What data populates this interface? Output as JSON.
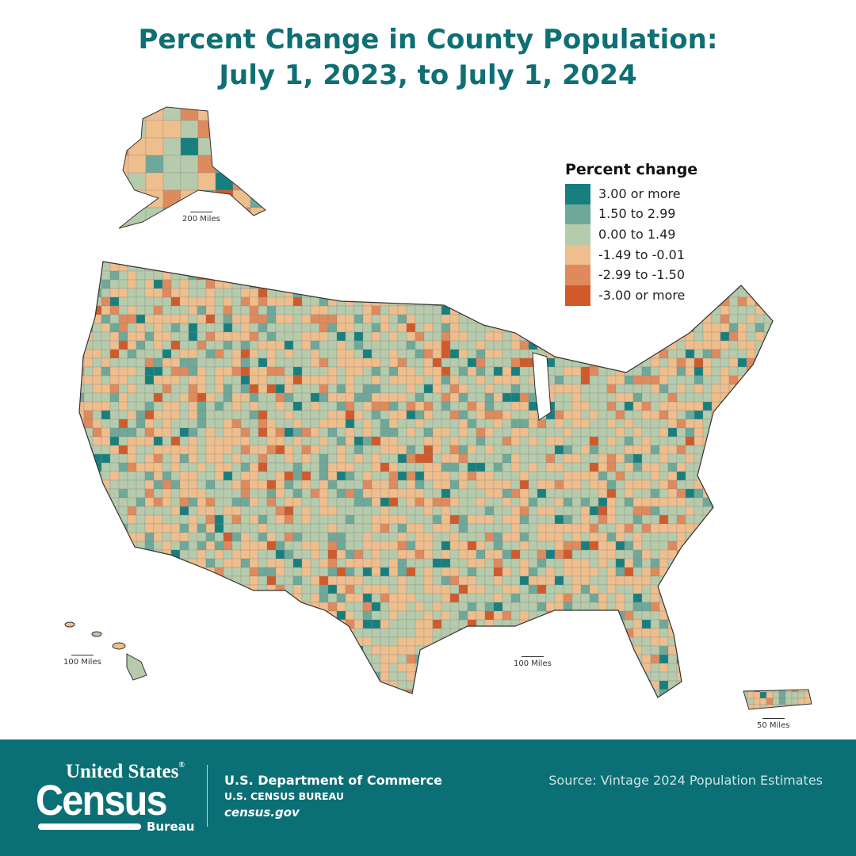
{
  "title_line1": "Percent Change in County Population:",
  "title_line2": "July 1, 2023, to July 1, 2024",
  "legend": {
    "title": "Percent change",
    "items": [
      {
        "label": "3.00 or more",
        "color": "#17807f"
      },
      {
        "label": "1.50 to 2.99",
        "color": "#6ea899"
      },
      {
        "label": "0.00 to 1.49",
        "color": "#b6cbab"
      },
      {
        "label": "-1.49 to -0.01",
        "color": "#efbe8d"
      },
      {
        "label": "-2.99 to -1.50",
        "color": "#df8a5c"
      },
      {
        "label": "-3.00 or more",
        "color": "#d15a2b"
      }
    ]
  },
  "scales": {
    "alaska": "200 Miles",
    "hawaii": "100 Miles",
    "conus": "100 Miles",
    "puerto_rico": "50 Miles"
  },
  "footer": {
    "logo_united_states": "United States",
    "logo_registered": "®",
    "logo_census": "Census",
    "logo_bureau": "Bureau",
    "department": "U.S. Department of Commerce",
    "bureau": "U.S. CENSUS BUREAU",
    "website": "census.gov",
    "source": "Source: Vintage 2024 Population Estimates"
  },
  "colors": {
    "title": "#0e6f75",
    "footer_bg": "#0b7076"
  }
}
